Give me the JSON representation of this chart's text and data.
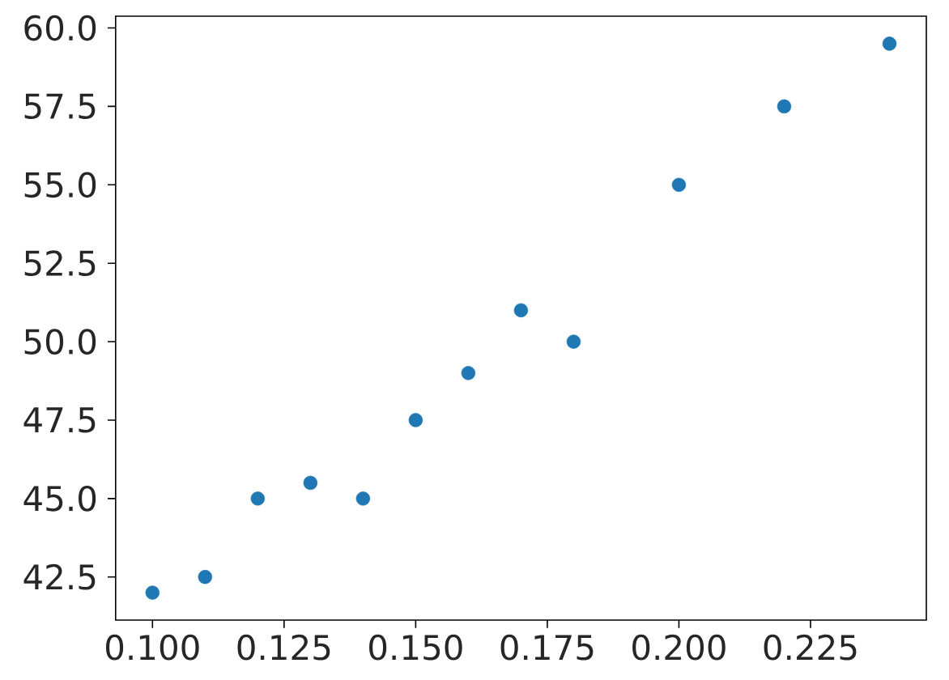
{
  "chart_data": {
    "type": "scatter",
    "x": [
      0.1,
      0.11,
      0.12,
      0.13,
      0.14,
      0.15,
      0.16,
      0.17,
      0.18,
      0.2,
      0.22,
      0.24
    ],
    "values": [
      42.0,
      42.5,
      45.0,
      45.5,
      45.0,
      47.5,
      49.0,
      51.0,
      50.0,
      55.0,
      57.5,
      59.5
    ],
    "color": "#1f77b4",
    "marker": "circle",
    "xlim": [
      0.093,
      0.247
    ],
    "ylim": [
      41.125,
      60.375
    ],
    "xticks": [
      {
        "value": 0.1,
        "label": "0.100"
      },
      {
        "value": 0.125,
        "label": "0.125"
      },
      {
        "value": 0.15,
        "label": "0.150"
      },
      {
        "value": 0.175,
        "label": "0.175"
      },
      {
        "value": 0.2,
        "label": "0.200"
      },
      {
        "value": 0.225,
        "label": "0.225"
      }
    ],
    "yticks": [
      42.5,
      {
        "value": 45,
        "label": "45.0"
      },
      47.5,
      {
        "value": 50,
        "label": "50.0"
      },
      52.5,
      {
        "value": 55,
        "label": "55.0"
      },
      57.5,
      {
        "value": 60,
        "label": "60.0"
      }
    ]
  }
}
